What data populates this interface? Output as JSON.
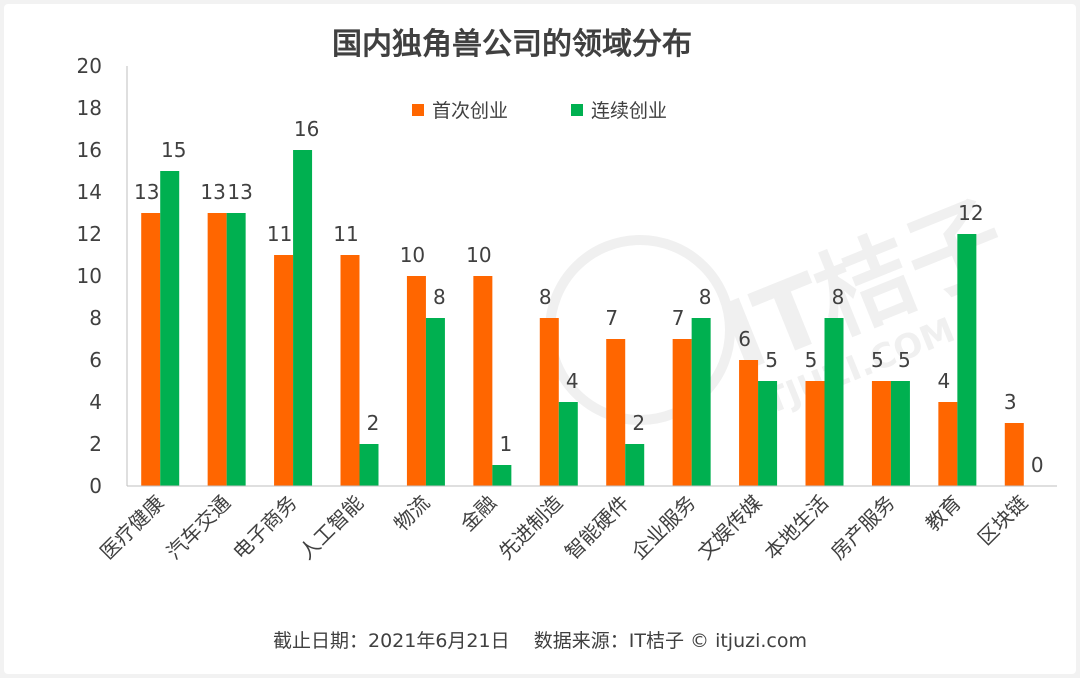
{
  "colors": {
    "first": "#ff6600",
    "serial": "#00b050",
    "axis": "#bfbfbf",
    "text": "#404040",
    "title": "#404040",
    "watermark": "#f0f0f0"
  },
  "footer": {
    "date": "截止日期：2021年6月21日",
    "source": "数据来源：IT桔子 © itjuzi.com"
  },
  "watermark": {
    "brand": "IT桔子",
    "site": "ITJUZI.COM"
  },
  "chart_data": {
    "type": "bar",
    "title": "国内独角兽公司的领域分布",
    "xlabel": "",
    "ylabel": "",
    "ylim": [
      0,
      20
    ],
    "yticks": [
      0,
      2,
      4,
      6,
      8,
      10,
      12,
      14,
      16,
      18,
      20
    ],
    "grid": false,
    "legend": "top-center",
    "categories": [
      "医疗健康",
      "汽车交通",
      "电子商务",
      "人工智能",
      "物流",
      "金融",
      "先进制造",
      "智能硬件",
      "企业服务",
      "文娱传媒",
      "本地生活",
      "房产服务",
      "教育",
      "区块链"
    ],
    "series": [
      {
        "name": "首次创业",
        "color": "#ff6600",
        "values": [
          13,
          13,
          11,
          11,
          10,
          10,
          8,
          7,
          7,
          6,
          5,
          5,
          4,
          3
        ]
      },
      {
        "name": "连续创业",
        "color": "#00b050",
        "values": [
          15,
          13,
          16,
          2,
          8,
          1,
          4,
          2,
          8,
          5,
          8,
          5,
          12,
          0
        ]
      }
    ]
  }
}
